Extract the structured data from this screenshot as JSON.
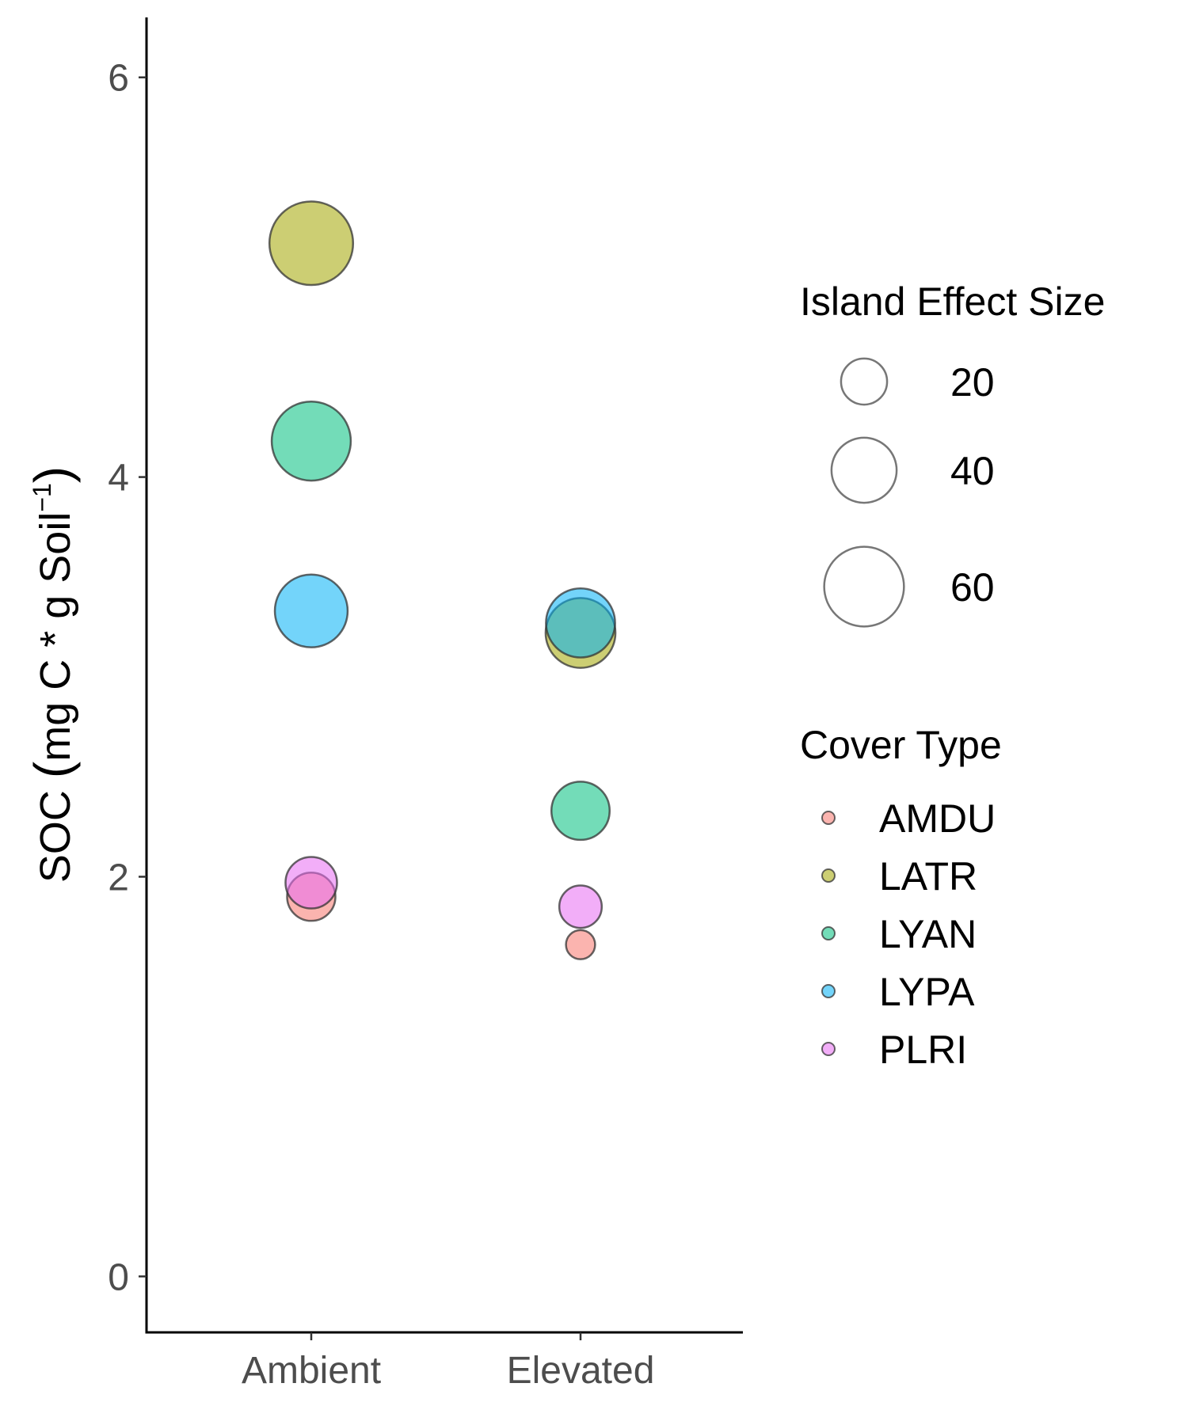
{
  "chart_data": {
    "type": "scatter",
    "title": "",
    "xlabel": "",
    "ylabel": {
      "prefix": "SOC ",
      "open_paren": "(",
      "text": "mg C * g Soil",
      "superscript": "−1",
      "close_paren": ")"
    },
    "categories": [
      "Ambient",
      "Elevated"
    ],
    "ylim": [
      -0.28,
      6.3
    ],
    "yticks": [
      0,
      2,
      4,
      6
    ],
    "grid": false,
    "size_legend": {
      "title": "Island Effect Size",
      "entries": [
        {
          "label": "20",
          "value": 20
        },
        {
          "label": "40",
          "value": 40
        },
        {
          "label": "60",
          "value": 60
        }
      ]
    },
    "color_legend": {
      "title": "Cover Type",
      "entries": [
        {
          "label": "AMDU",
          "color": "#F8766D"
        },
        {
          "label": "LATR",
          "color": "#A3A500"
        },
        {
          "label": "LYAN",
          "color": "#00BF7D"
        },
        {
          "label": "LYPA",
          "color": "#00B0F6"
        },
        {
          "label": "PLRI",
          "color": "#E76BF3"
        }
      ]
    },
    "series": [
      {
        "name": "AMDU",
        "color": "#F8766D",
        "points": [
          {
            "x": "Ambient",
            "y": 1.9,
            "size": 22
          },
          {
            "x": "Elevated",
            "y": 1.66,
            "size": 8
          }
        ]
      },
      {
        "name": "LATR",
        "color": "#A3A500",
        "points": [
          {
            "x": "Ambient",
            "y": 5.17,
            "size": 66
          },
          {
            "x": "Elevated",
            "y": 3.22,
            "size": 46
          }
        ]
      },
      {
        "name": "LYAN",
        "color": "#00BF7D",
        "points": [
          {
            "x": "Ambient",
            "y": 4.18,
            "size": 59
          },
          {
            "x": "Elevated",
            "y": 2.33,
            "size": 32
          }
        ]
      },
      {
        "name": "LYPA",
        "color": "#00B0F6",
        "points": [
          {
            "x": "Ambient",
            "y": 3.33,
            "size": 50
          },
          {
            "x": "Elevated",
            "y": 3.27,
            "size": 45
          }
        ]
      },
      {
        "name": "PLRI",
        "color": "#E76BF3",
        "points": [
          {
            "x": "Ambient",
            "y": 1.97,
            "size": 25
          },
          {
            "x": "Elevated",
            "y": 1.85,
            "size": 17
          }
        ]
      }
    ]
  }
}
